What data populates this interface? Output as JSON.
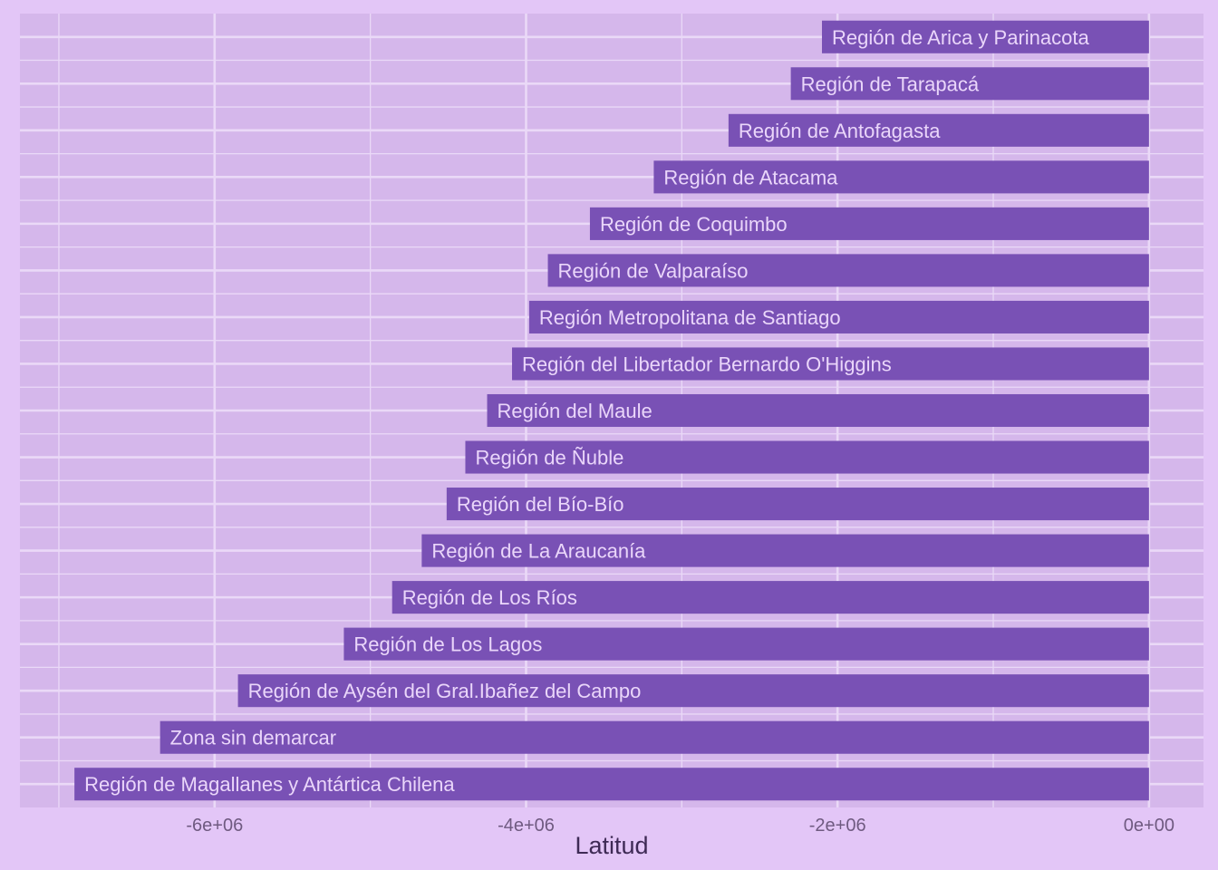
{
  "chart_data": {
    "type": "bar",
    "orientation": "horizontal",
    "title": "",
    "xlabel": "Latitud",
    "ylabel": "",
    "xlim": [
      -7250000,
      350000
    ],
    "x_ticks": [
      -6000000,
      -4000000,
      -2000000,
      0
    ],
    "x_tick_labels": [
      "-6e+06",
      "-4e+06",
      "-2e+06",
      "0e+00"
    ],
    "grid": true,
    "legend": "none",
    "colors": {
      "background": "#e3c6f7",
      "panel": "#d5b7eb",
      "grid": "#ead9f7",
      "bar": "#7951b5",
      "bar_label": "#ead6fa",
      "tick_label": "#6f5a80",
      "axis_title": "#3e2a55"
    },
    "categories": [
      "Región de Arica y Parinacota",
      "Región de Tarapacá",
      "Región de Antofagasta",
      "Región de Atacama",
      "Región de Coquimbo",
      "Región de Valparaíso",
      "Región Metropolitana de Santiago",
      "Región del Libertador Bernardo O'Higgins",
      "Región del Maule",
      "Región de Ñuble",
      "Región del Bío-Bío",
      "Región de La Araucanía",
      "Región de Los Ríos",
      "Región de Los Lagos",
      "Región de Aysén del Gral.Ibañez del Campo",
      "Zona sin demarcar",
      "Región de Magallanes y Antártica Chilena"
    ],
    "values": [
      -2100000,
      -2300000,
      -2700000,
      -3180000,
      -3590000,
      -3860000,
      -3980000,
      -4090000,
      -4250000,
      -4390000,
      -4510000,
      -4670000,
      -4860000,
      -5170000,
      -5850000,
      -6350000,
      -6900000
    ]
  }
}
